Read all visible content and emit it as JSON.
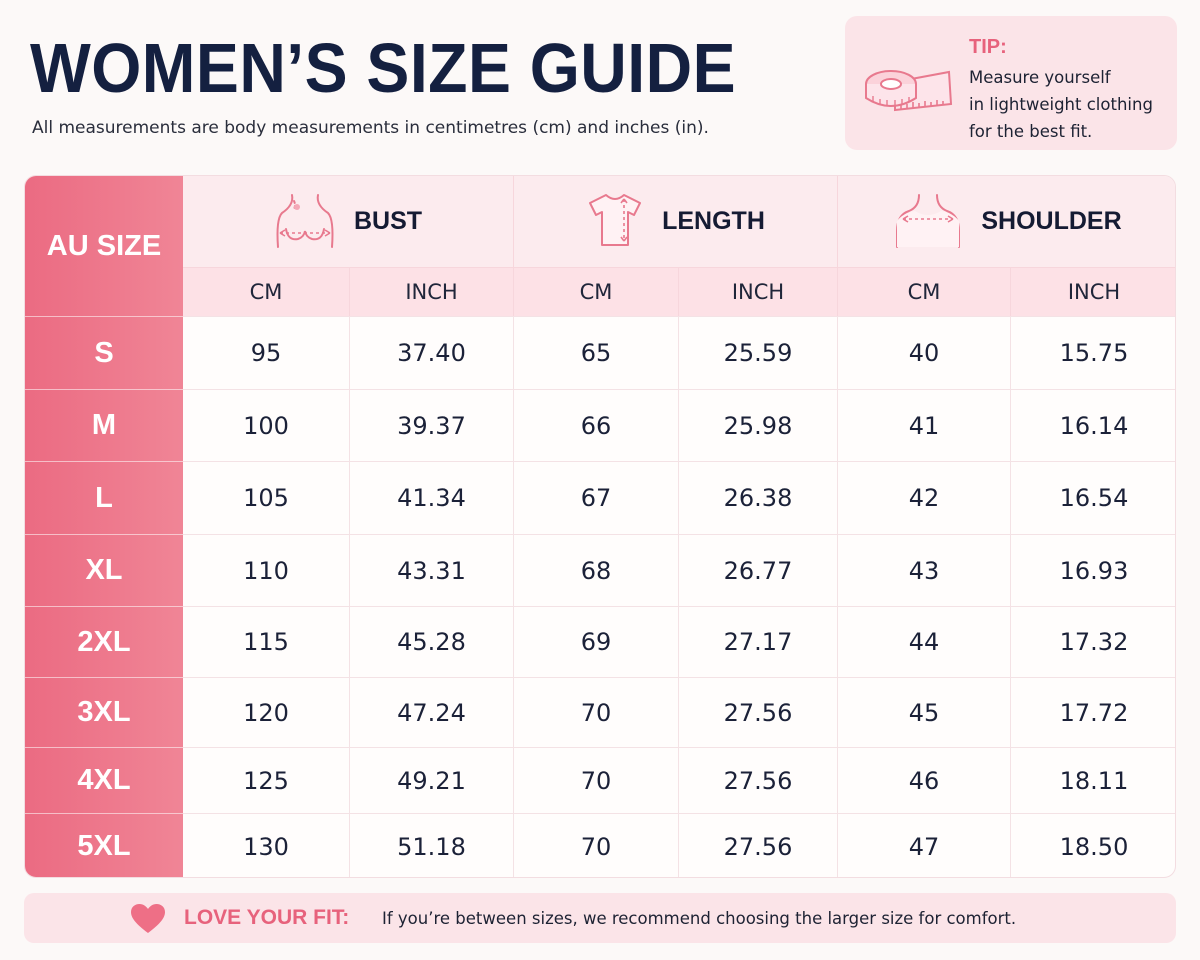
{
  "header": {
    "title": "WOMEN’S SIZE GUIDE",
    "subtitle": "All measurements are body measurements in centimetres (cm) and inches (in)."
  },
  "tip": {
    "label": "TIP:",
    "lines": [
      "Measure yourself",
      "in lightweight clothing",
      "for the best fit."
    ],
    "icon": "measuring-tape-icon"
  },
  "table": {
    "size_header": "AU SIZE",
    "groups": [
      {
        "label": "BUST",
        "icon": "bust-icon",
        "units": [
          "CM",
          "INCH"
        ]
      },
      {
        "label": "LENGTH",
        "icon": "tshirt-length-icon",
        "units": [
          "CM",
          "INCH"
        ]
      },
      {
        "label": "SHOULDER",
        "icon": "shoulder-icon",
        "units": [
          "CM",
          "INCH"
        ]
      }
    ],
    "rows": [
      {
        "size": "S",
        "values": [
          "95",
          "37.40",
          "65",
          "25.59",
          "40",
          "15.75"
        ]
      },
      {
        "size": "M",
        "values": [
          "100",
          "39.37",
          "66",
          "25.98",
          "41",
          "16.14"
        ]
      },
      {
        "size": "L",
        "values": [
          "105",
          "41.34",
          "67",
          "26.38",
          "42",
          "16.54"
        ]
      },
      {
        "size": "XL",
        "values": [
          "110",
          "43.31",
          "68",
          "26.77",
          "43",
          "16.93"
        ]
      },
      {
        "size": "2XL",
        "values": [
          "115",
          "45.28",
          "69",
          "27.17",
          "44",
          "17.32"
        ]
      },
      {
        "size": "3XL",
        "values": [
          "120",
          "47.24",
          "70",
          "27.56",
          "45",
          "17.72"
        ]
      },
      {
        "size": "4XL",
        "values": [
          "125",
          "49.21",
          "70",
          "27.56",
          "46",
          "18.11"
        ]
      },
      {
        "size": "5XL",
        "values": [
          "130",
          "51.18",
          "70",
          "27.56",
          "47",
          "18.50"
        ]
      }
    ]
  },
  "footer": {
    "label": "LOVE YOUR FIT:",
    "text": "If you’re between sizes, we recommend choosing the larger size for comfort.",
    "icon": "heart-icon"
  },
  "colors": {
    "accent": "#e7627c",
    "size_column": "#ee7a8e",
    "header_bg": "#fcebee",
    "title": "#142040"
  }
}
